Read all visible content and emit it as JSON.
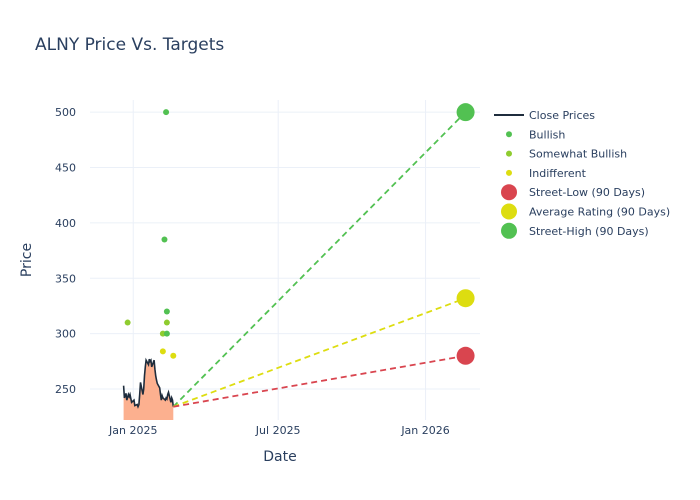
{
  "chart_data": {
    "type": "scatter",
    "title": "ALNY Price Vs. Targets",
    "xlabel": "Date",
    "ylabel": "Price",
    "x_range": [
      "2024-11-08",
      "2026-03-10"
    ],
    "ylim": [
      222,
      511
    ],
    "x_ticks": [
      {
        "date": "2025-01-01",
        "label": "Jan 2025"
      },
      {
        "date": "2025-07-01",
        "label": "Jul 2025"
      },
      {
        "date": "2026-01-01",
        "label": "Jan 2026"
      }
    ],
    "y_ticks": [
      250,
      300,
      350,
      400,
      450,
      500
    ],
    "grid": true,
    "legend_position": "right",
    "colors": {
      "close": "#1f2d3d",
      "area": "#fcb08f",
      "bullish": "#52c152",
      "somewhat_bullish": "#8fcc2f",
      "indifferent": "#dddd10",
      "street_low": "#d9454f",
      "street_high": "#52c152"
    },
    "close_prices": {
      "name": "Close Prices",
      "dates": [
        "2024-12-20",
        "2024-12-21",
        "2024-12-23",
        "2024-12-24",
        "2024-12-26",
        "2024-12-27",
        "2024-12-28",
        "2024-12-30",
        "2025-01-02",
        "2025-01-03",
        "2025-01-06",
        "2025-01-07",
        "2025-01-08",
        "2025-01-09",
        "2025-01-10",
        "2025-01-13",
        "2025-01-14",
        "2025-01-15",
        "2025-01-16",
        "2025-01-17",
        "2025-01-20",
        "2025-01-21",
        "2025-01-22",
        "2025-01-23",
        "2025-01-24",
        "2025-01-27",
        "2025-01-28",
        "2025-01-29",
        "2025-01-30",
        "2025-01-31",
        "2025-02-03",
        "2025-02-04",
        "2025-02-05",
        "2025-02-06",
        "2025-02-07",
        "2025-02-10",
        "2025-02-11",
        "2025-02-12",
        "2025-02-13",
        "2025-02-14",
        "2025-02-17",
        "2025-02-18",
        "2025-02-19",
        "2025-02-20"
      ],
      "values": [
        253,
        242,
        246,
        240,
        245,
        243,
        245,
        238,
        240,
        235,
        236,
        234,
        236,
        245,
        256,
        245,
        250,
        262,
        270,
        276,
        272,
        277,
        275,
        276,
        270,
        276,
        268,
        262,
        258,
        255,
        251,
        245,
        240,
        244,
        242,
        240,
        242,
        241,
        245,
        247,
        238,
        242,
        240,
        234
      ]
    },
    "ratings": [
      {
        "series": "Bullish",
        "date": "2024-12-25",
        "value": 310,
        "category": "somewhat_bullish"
      },
      {
        "series": "Bullish",
        "date": "2025-02-11",
        "value": 500,
        "category": "bullish"
      },
      {
        "series": "Bullish",
        "date": "2025-02-09",
        "value": 385,
        "category": "bullish"
      },
      {
        "series": "Bullish",
        "date": "2025-02-12",
        "value": 320,
        "category": "bullish"
      },
      {
        "series": "Bullish",
        "date": "2025-02-12",
        "value": 310,
        "category": "somewhat_bullish"
      },
      {
        "series": "Bullish",
        "date": "2025-02-07",
        "value": 300,
        "category": "somewhat_bullish"
      },
      {
        "series": "Bullish",
        "date": "2025-02-12",
        "value": 300,
        "category": "bullish"
      },
      {
        "series": "Indifferent",
        "date": "2025-02-07",
        "value": 284,
        "category": "indifferent"
      },
      {
        "series": "Indifferent",
        "date": "2025-02-20",
        "value": 280,
        "category": "indifferent"
      }
    ],
    "targets": {
      "start_date": "2025-02-20",
      "start_value": 234,
      "end_date": "2026-02-20",
      "street_low": 280,
      "average": 332,
      "street_high": 500
    },
    "legend": [
      {
        "label": "Close Prices",
        "kind": "line",
        "color": "#1f2d3d"
      },
      {
        "label": "Bullish",
        "kind": "dot",
        "color": "#52c152"
      },
      {
        "label": "Somewhat Bullish",
        "kind": "dot",
        "color": "#8fcc2f"
      },
      {
        "label": "Indifferent",
        "kind": "dot",
        "color": "#dddd10"
      },
      {
        "label": "Street-Low (90 Days)",
        "kind": "big",
        "color": "#d9454f"
      },
      {
        "label": "Average Rating (90 Days)",
        "kind": "big",
        "color": "#dddd10"
      },
      {
        "label": "Street-High (90 Days)",
        "kind": "big",
        "color": "#52c152"
      }
    ]
  }
}
